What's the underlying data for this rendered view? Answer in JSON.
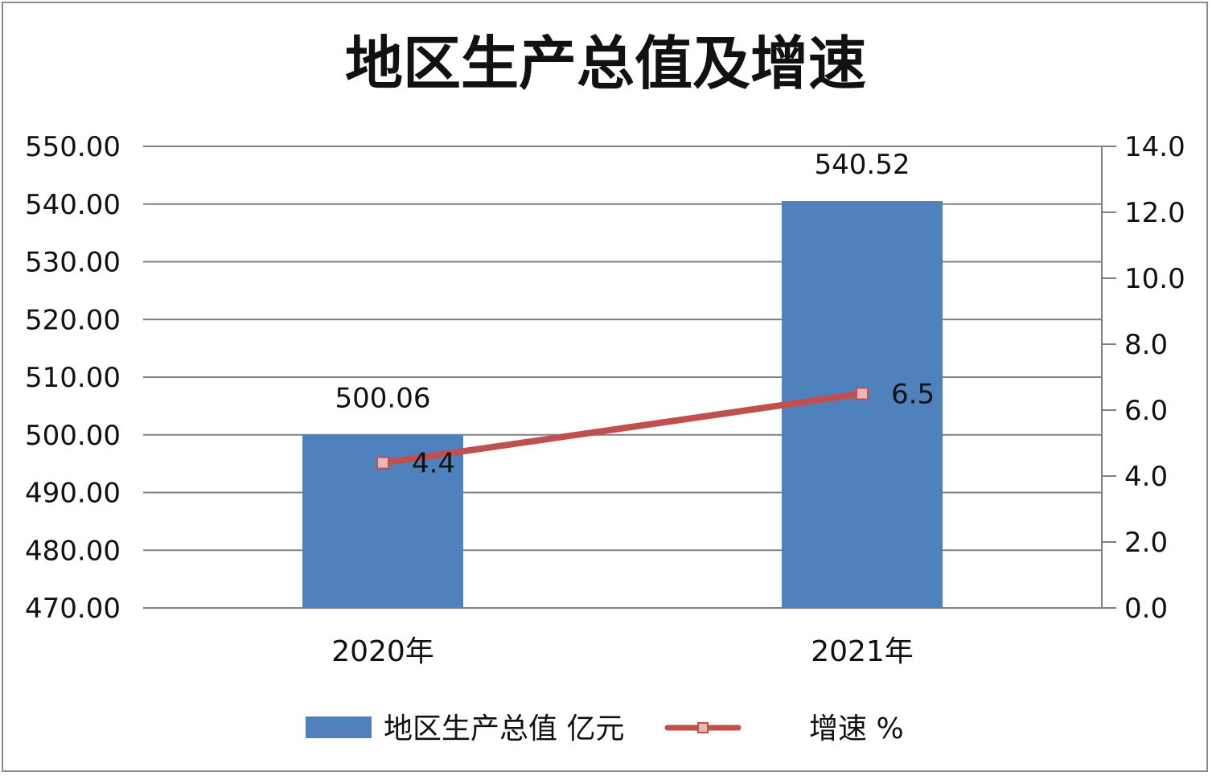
{
  "chart_data": {
    "type": "bar",
    "title": "地区生产总值及增速",
    "categories": [
      "2020年",
      "2021年"
    ],
    "series": [
      {
        "name": "地区生产总值 亿元",
        "type": "bar",
        "axis": "left",
        "values": [
          500.06,
          540.52
        ],
        "labels": [
          "500.06",
          "540.52"
        ],
        "color": "#4f81bd"
      },
      {
        "name": "增速 %",
        "type": "line",
        "axis": "right",
        "values": [
          4.4,
          6.5
        ],
        "labels": [
          "4.4",
          "6.5"
        ],
        "color": "#c0504d"
      }
    ],
    "y_left": {
      "min": 470,
      "max": 550,
      "step": 10,
      "ticks": [
        "550.00",
        "540.00",
        "530.00",
        "520.00",
        "510.00",
        "500.00",
        "490.00",
        "480.00",
        "470.00"
      ]
    },
    "y_right": {
      "min": 0,
      "max": 14,
      "step": 2,
      "ticks": [
        "14.0",
        "12.0",
        "10.0",
        "8.0",
        "6.0",
        "4.0",
        "2.0",
        "0.0"
      ]
    },
    "grid": true,
    "legend": "bottom",
    "gridline_color": "#808080"
  }
}
